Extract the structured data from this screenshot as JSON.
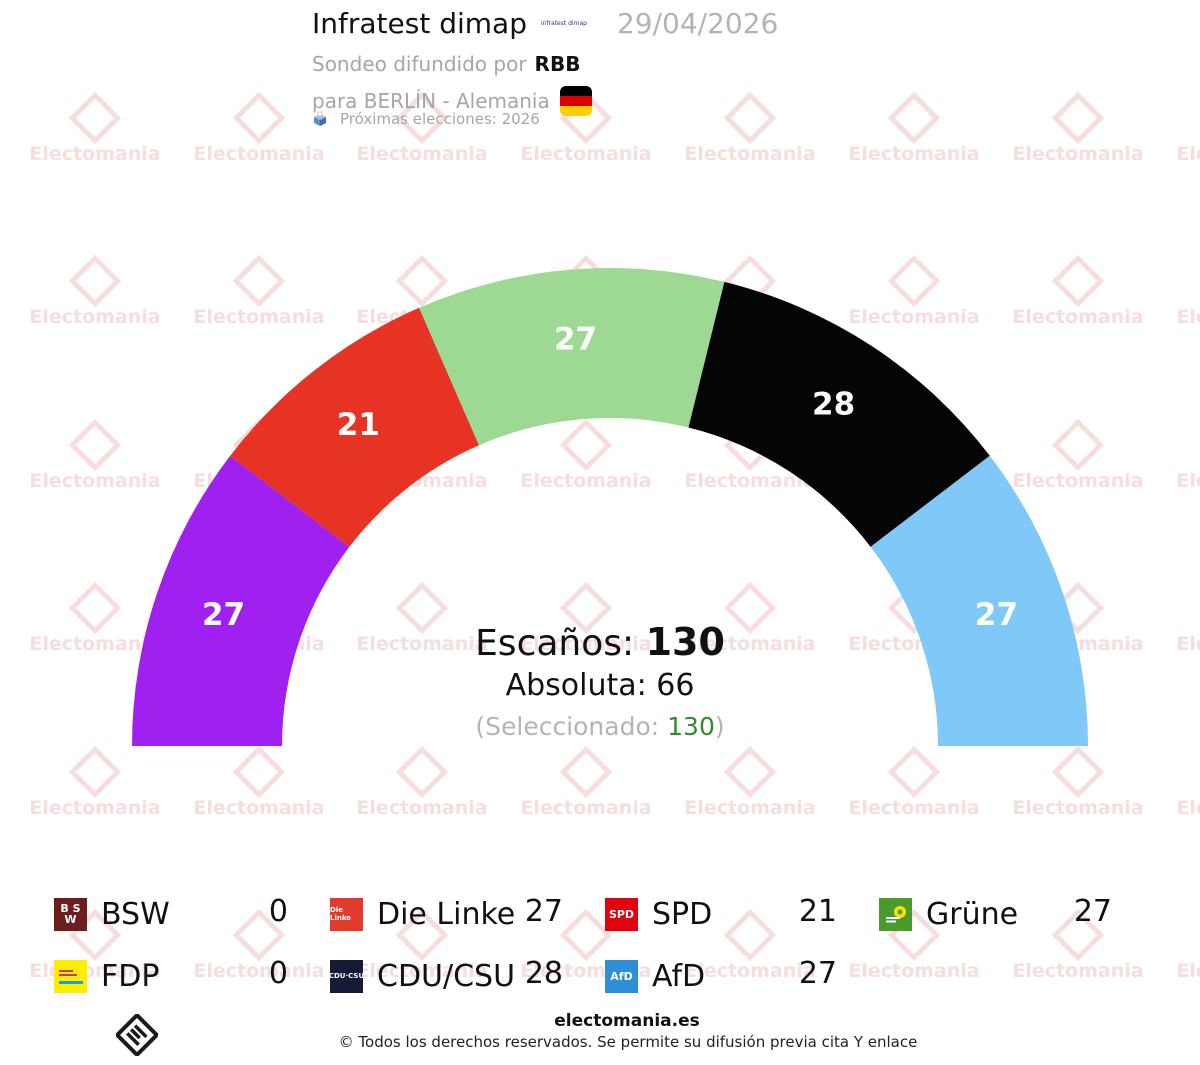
{
  "header": {
    "pollster": "Infratest dimap",
    "pollster_logo_text": "infratest dimap",
    "date": "29/04/2026",
    "spread_by_label": "Sondeo difundido por",
    "media": "RBB",
    "region_label": "para BERLÍN - Alemania",
    "next_elections": "Próximas elecciones: 2026",
    "flag_colors": [
      "#000000",
      "#dd0000",
      "#ffce00"
    ]
  },
  "watermark": {
    "text": "Electomania",
    "color": "#f6dede"
  },
  "chart_data": {
    "type": "pie",
    "subtype": "parliament-semicircle",
    "total_seats": 130,
    "majority": 66,
    "selected": 130,
    "segments": [
      {
        "party": "Die Linke",
        "seats": 27,
        "color": "#a020f0"
      },
      {
        "party": "SPD",
        "seats": 21,
        "color": "#e63323"
      },
      {
        "party": "Grüne",
        "seats": 27,
        "color": "#9ed994"
      },
      {
        "party": "CDU/CSU",
        "seats": 28,
        "color": "#050505"
      },
      {
        "party": "AfD",
        "seats": 27,
        "color": "#80c8f8"
      }
    ]
  },
  "center": {
    "seats_label": "Escaños:",
    "seats_value": "130",
    "absolute_label": "Absoluta: 66",
    "selected_open": "(Seleccionado: ",
    "selected_value": "130",
    "selected_close": ")"
  },
  "legend": [
    {
      "name": "BSW",
      "value": "0",
      "logo": "BSW",
      "color": "#7a1f1f"
    },
    {
      "name": "Die Linke",
      "value": "27",
      "logo": "Die Linke",
      "color": "#e33a2e"
    },
    {
      "name": "SPD",
      "value": "21",
      "logo": "SPD",
      "color": "#e3000f"
    },
    {
      "name": "Grüne",
      "value": "27",
      "logo": "",
      "color": "#4a9a2e"
    },
    {
      "name": "FDP",
      "value": "0",
      "logo": "",
      "color": "#ffed00"
    },
    {
      "name": "CDU/CSU",
      "value": "28",
      "logo": "CDU-CSU",
      "color": "#151a35"
    },
    {
      "name": "AfD",
      "value": "27",
      "logo": "AfD",
      "color": "#2d8fd5"
    }
  ],
  "footer": {
    "site": "electomania.es",
    "copyright": "© Todos los derechos reservados. Se permite su difusión previa cita Y enlace"
  }
}
